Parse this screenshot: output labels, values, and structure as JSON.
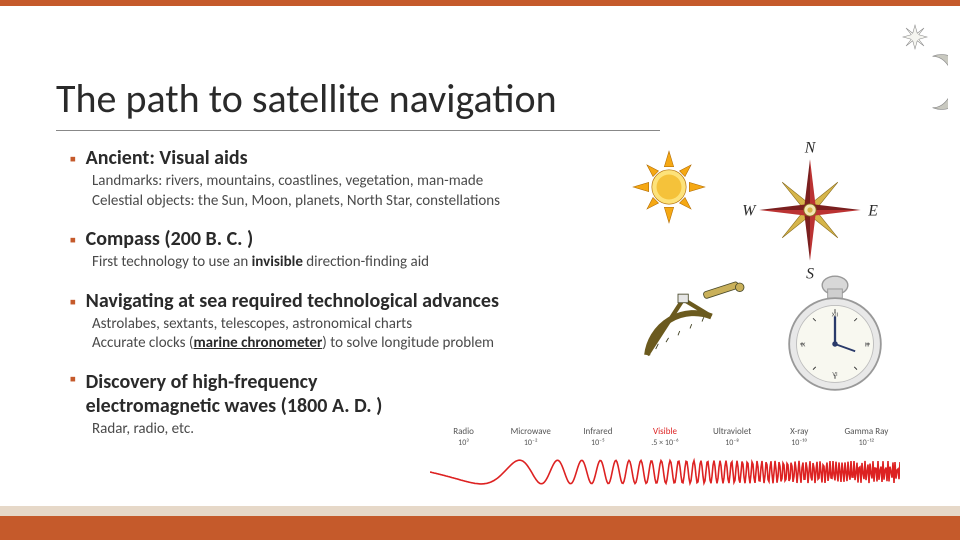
{
  "title": "The path to satellite navigation",
  "sections": [
    {
      "title": "Ancient: Visual aids",
      "body_lines": [
        "Landmarks: rivers, mountains, coastlines, vegetation, man-made",
        "Celestial objects: the Sun, Moon, planets, North Star, constellations"
      ]
    },
    {
      "title": "Compass (200 B. C. )",
      "body_html": "First technology to use an <span class='bold'>invisible</span> direction-finding aid"
    },
    {
      "title": "Navigating at sea required technological advances",
      "body_html": "Astrolabes, sextants, telescopes, astronomical charts<br>Accurate clocks  (<span class='bold underline'>marine chronometer</span>) to solve longitude problem"
    },
    {
      "title": "Discovery of high-frequency electromagnetic waves (1800 A. D. )",
      "title_two_line": [
        "Discovery of high-frequency",
        "electromagnetic waves (1800 A. D. )"
      ],
      "body_lines": [
        "Radar, radio, etc."
      ]
    }
  ],
  "compass_rose": {
    "labels": {
      "n": "N",
      "s": "S",
      "e": "E",
      "w": "W"
    }
  },
  "spectrum": {
    "bands": [
      {
        "name": "Radio",
        "scale": "10³",
        "color": "#444"
      },
      {
        "name": "Microwave",
        "scale": "10⁻²",
        "color": "#444"
      },
      {
        "name": "Infrared",
        "scale": "10⁻⁵",
        "color": "#444"
      },
      {
        "name": "Visible",
        "scale": ".5 × 10⁻⁶",
        "color": "#d22",
        "highlight": true
      },
      {
        "name": "Ultraviolet",
        "scale": "10⁻⁸",
        "color": "#444"
      },
      {
        "name": "X-ray",
        "scale": "10⁻¹⁰",
        "color": "#444"
      },
      {
        "name": "Gamma Ray",
        "scale": "10⁻¹²",
        "color": "#444"
      }
    ],
    "wave_color": "#d22"
  },
  "colors": {
    "accent": "#c55a2b",
    "sun_fill": "#f5a814",
    "sun_core": "#fde27a",
    "star_fill": "#f5f5f0",
    "star_stroke": "#888",
    "moon_fill": "#c9c9c0",
    "compass_pointer_red": "#b33",
    "compass_pointer_gold": "#d6b54a",
    "chronometer_silver": "#d8d8d8",
    "chronometer_face": "#f8f8f0"
  }
}
